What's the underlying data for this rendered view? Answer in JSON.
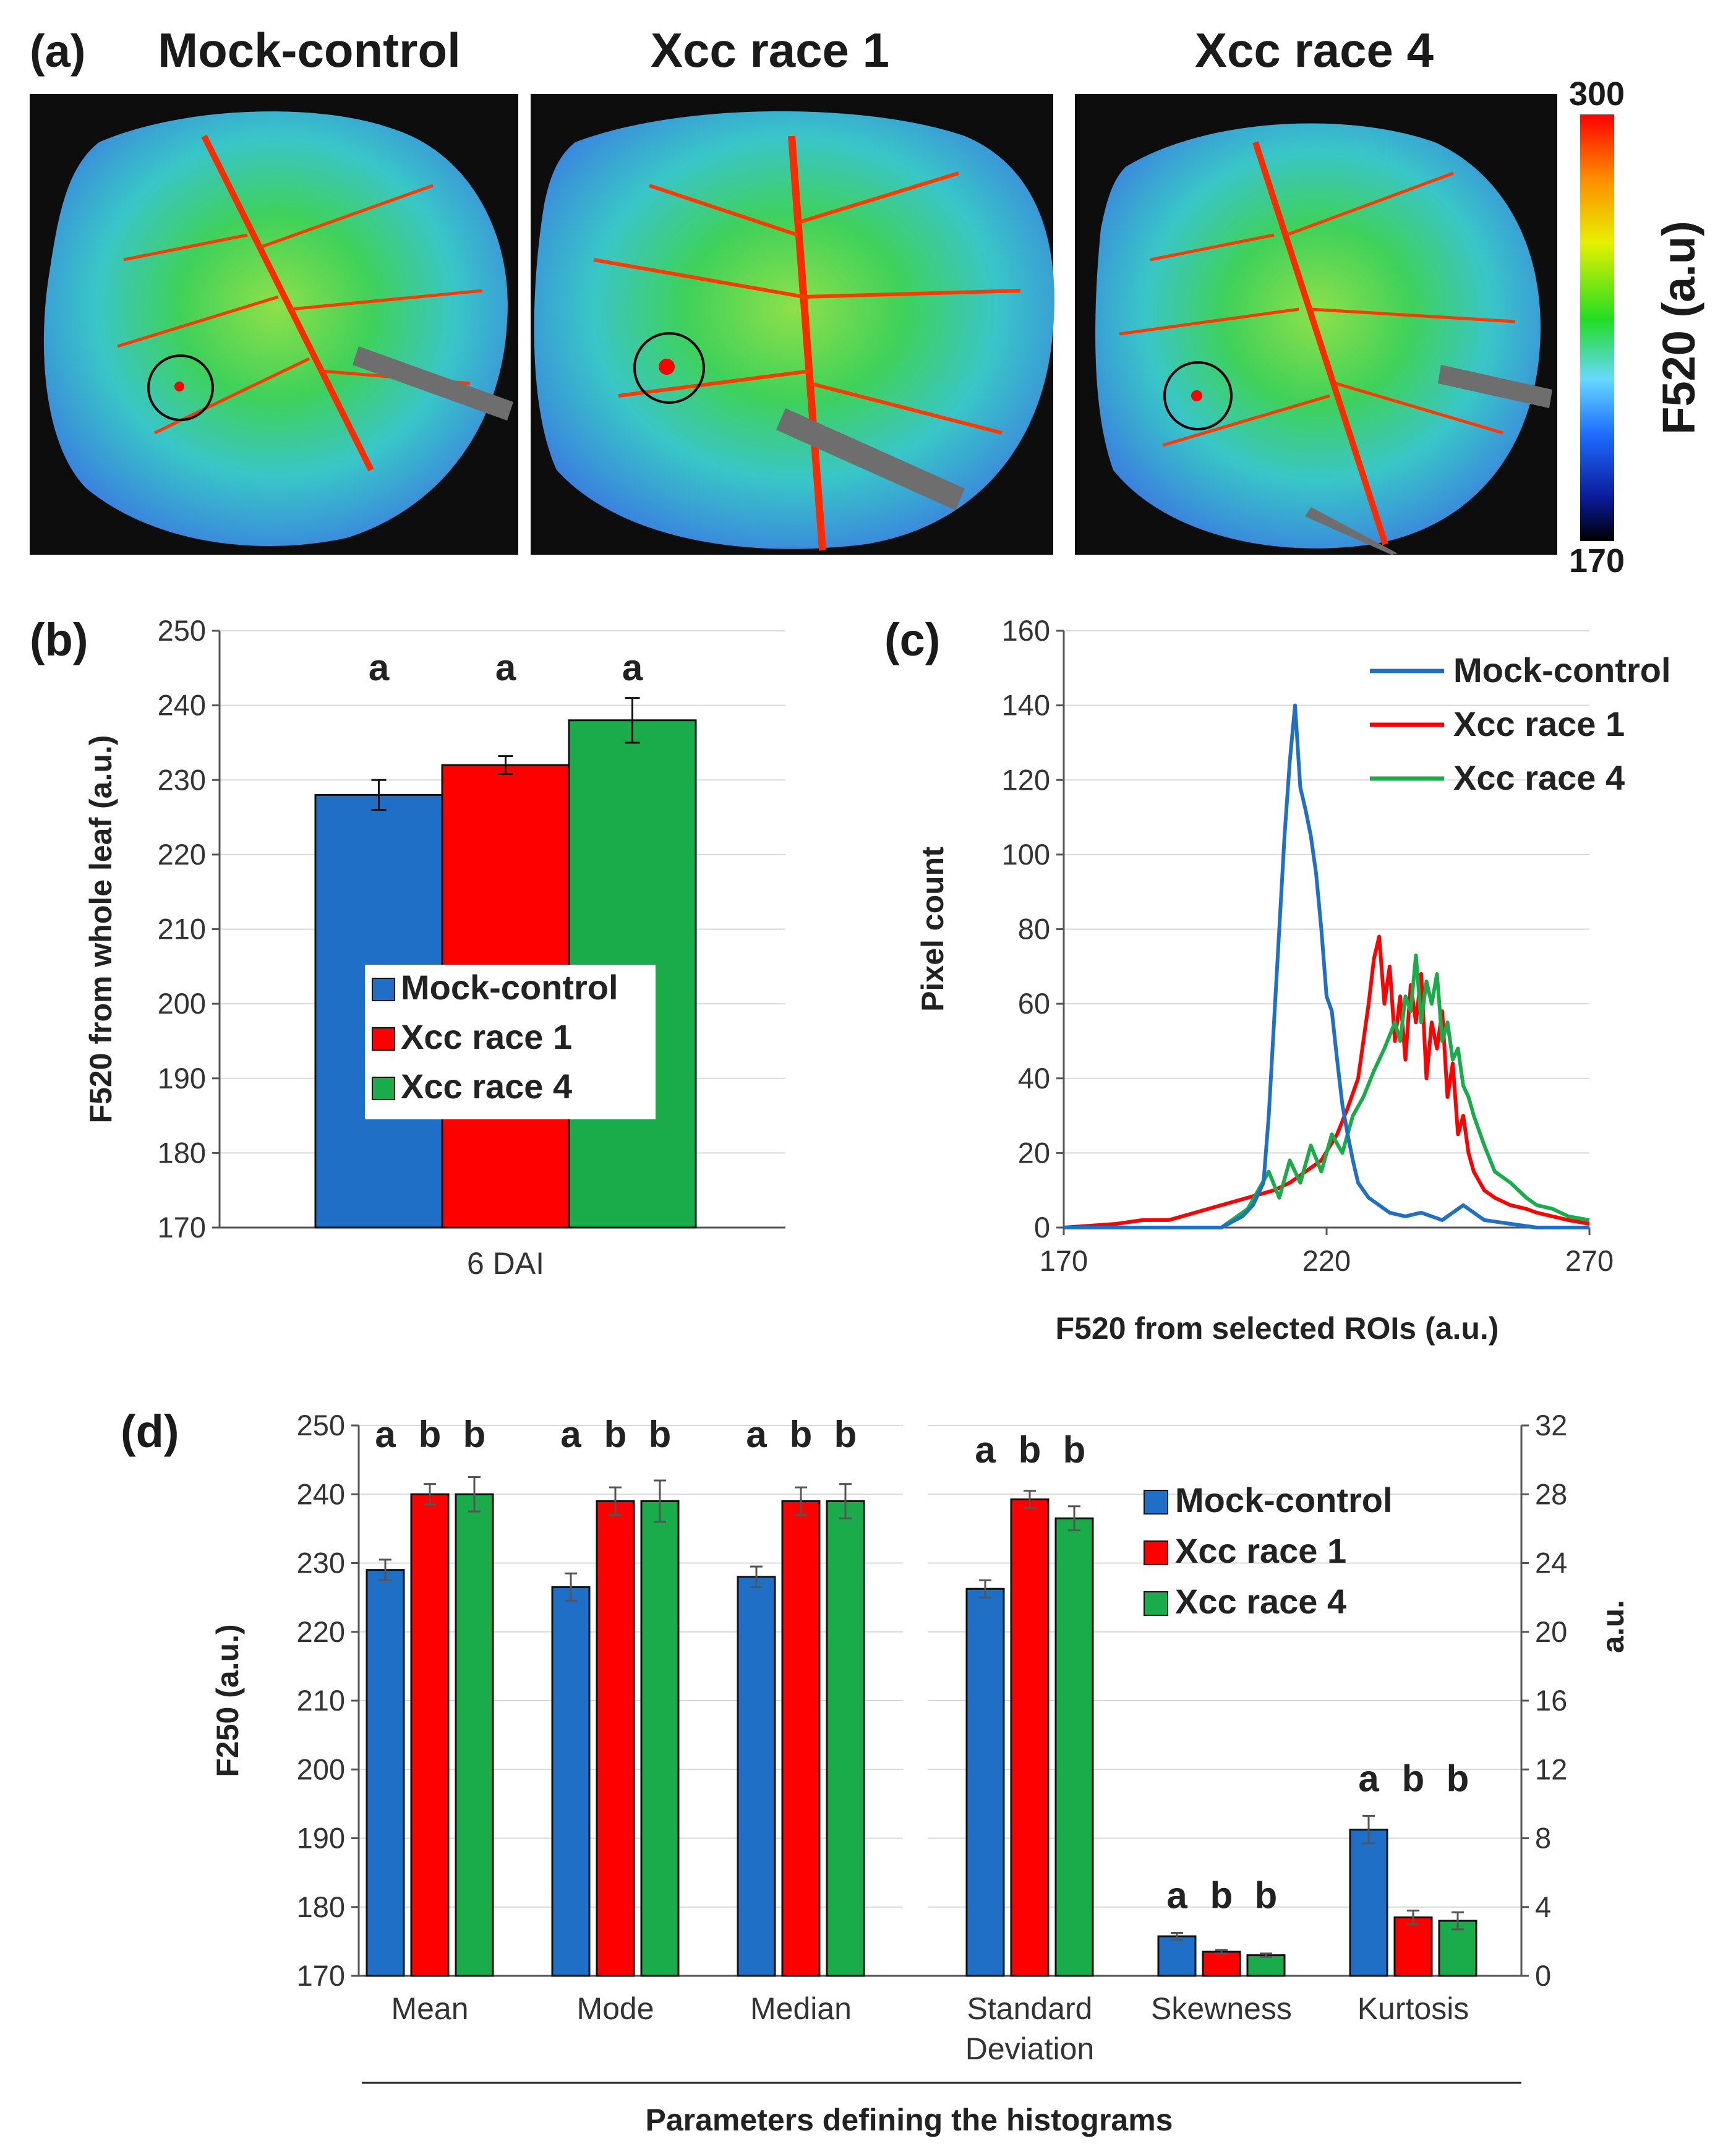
{
  "panel_a": {
    "label": "(a)",
    "images": [
      {
        "title": "Mock-control"
      },
      {
        "title": "Xcc race 1"
      },
      {
        "title": "Xcc race 4"
      }
    ],
    "colorbar": {
      "title": "F520 (a.u)",
      "max_label": "300",
      "min_label": "170"
    }
  },
  "colors": {
    "mock": "#1f6fc6",
    "race1": "#ff0000",
    "race4": "#1aab4a"
  },
  "chart_data": [
    {
      "id": "b",
      "label": "(b)",
      "type": "bar",
      "categories": [
        "6 DAI"
      ],
      "series": [
        {
          "name": "Mock-control",
          "values": [
            228
          ],
          "errors": [
            2
          ],
          "letters": [
            "a"
          ]
        },
        {
          "name": "Xcc race 1",
          "values": [
            232
          ],
          "errors": [
            1.2
          ],
          "letters": [
            "a"
          ]
        },
        {
          "name": "Xcc race 4",
          "values": [
            238
          ],
          "errors": [
            3
          ],
          "letters": [
            "a"
          ]
        }
      ],
      "ylabel": "F520 from whole leaf (a.u.)",
      "ylim": [
        170,
        250
      ],
      "yticks": [
        "170",
        "180",
        "190",
        "200",
        "210",
        "220",
        "230",
        "240",
        "250"
      ],
      "legend_placement": "center"
    },
    {
      "id": "c",
      "label": "(c)",
      "type": "line",
      "xlabel": "F520 from selected ROIs (a.u.)",
      "ylabel": "Pixel count",
      "xlim": [
        170,
        270
      ],
      "ylim": [
        0,
        160
      ],
      "xticks": [
        "170",
        "220",
        "270"
      ],
      "yticks": [
        "0",
        "20",
        "40",
        "60",
        "80",
        "100",
        "120",
        "140",
        "160"
      ],
      "legend_placement": "top-right",
      "series": [
        {
          "name": "Mock-control",
          "x": [
            170,
            200,
            204,
            206,
            208,
            209,
            210,
            211,
            212,
            213,
            214,
            215,
            216,
            217,
            218,
            219,
            220,
            221,
            222,
            223,
            224,
            225,
            226,
            228,
            230,
            232,
            235,
            238,
            242,
            246,
            250,
            255,
            260,
            270
          ],
          "y": [
            0,
            0,
            3,
            6,
            12,
            30,
            55,
            80,
            105,
            125,
            140,
            118,
            112,
            105,
            95,
            80,
            62,
            58,
            45,
            33,
            25,
            18,
            12,
            8,
            6,
            4,
            3,
            4,
            2,
            6,
            2,
            1,
            0,
            0
          ]
        },
        {
          "name": "Xcc race 1",
          "x": [
            170,
            180,
            185,
            190,
            195,
            200,
            205,
            210,
            213,
            216,
            219,
            222,
            224,
            226,
            228,
            229,
            230,
            231,
            232,
            233,
            234,
            235,
            236,
            237,
            238,
            239,
            240,
            241,
            242,
            243,
            244,
            245,
            246,
            247,
            248,
            250,
            252,
            255,
            258,
            260,
            263,
            266,
            270
          ],
          "y": [
            0,
            1,
            2,
            2,
            4,
            6,
            8,
            10,
            12,
            15,
            18,
            25,
            32,
            40,
            60,
            72,
            78,
            60,
            70,
            50,
            62,
            45,
            65,
            55,
            68,
            40,
            55,
            48,
            58,
            35,
            44,
            25,
            30,
            20,
            15,
            10,
            8,
            6,
            5,
            4,
            3,
            2,
            1
          ]
        },
        {
          "name": "Xcc race 4",
          "x": [
            170,
            200,
            205,
            207,
            209,
            211,
            213,
            215,
            217,
            219,
            221,
            223,
            225,
            227,
            229,
            231,
            233,
            234,
            235,
            236,
            237,
            238,
            239,
            240,
            241,
            242,
            243,
            244,
            245,
            246,
            247,
            248,
            250,
            252,
            255,
            258,
            260,
            263,
            266,
            270
          ],
          "y": [
            0,
            0,
            5,
            10,
            15,
            8,
            18,
            12,
            22,
            15,
            25,
            20,
            30,
            35,
            42,
            48,
            55,
            50,
            62,
            58,
            73,
            55,
            66,
            60,
            68,
            50,
            55,
            45,
            48,
            38,
            35,
            30,
            22,
            15,
            12,
            8,
            6,
            5,
            3,
            2
          ]
        }
      ]
    },
    {
      "id": "d",
      "label": "(d)",
      "type": "bar",
      "xlabel": "Parameters defining the histograms",
      "ylabel": "F250 (a.u.)",
      "ylabel_right": "a.u.",
      "ylim": [
        170,
        250
      ],
      "ylim_right": [
        0,
        32
      ],
      "yticks": [
        "170",
        "180",
        "190",
        "200",
        "210",
        "220",
        "230",
        "240",
        "250"
      ],
      "yticks_right": [
        "0",
        "4",
        "8",
        "12",
        "16",
        "20",
        "24",
        "28",
        "32"
      ],
      "legend_placement": "top-right",
      "groups": [
        {
          "category": "Mean",
          "axis": "left",
          "values": [
            229,
            240,
            240
          ],
          "errors": [
            1.5,
            1.5,
            2.5
          ],
          "letters": [
            "a",
            "b",
            "b"
          ]
        },
        {
          "category": "Mode",
          "axis": "left",
          "values": [
            226.5,
            239,
            239
          ],
          "errors": [
            2,
            2,
            3
          ],
          "letters": [
            "a",
            "b",
            "b"
          ]
        },
        {
          "category": "Median",
          "axis": "left",
          "values": [
            228,
            239,
            239
          ],
          "errors": [
            1.5,
            2,
            2.5
          ],
          "letters": [
            "a",
            "b",
            "b"
          ]
        },
        {
          "category": "Standard Deviation",
          "category_lines": [
            "Standard",
            "Deviation"
          ],
          "axis": "right",
          "values": [
            22.5,
            27.7,
            26.6
          ],
          "errors": [
            0.5,
            0.5,
            0.7
          ],
          "letters": [
            "a",
            "b",
            "b"
          ]
        },
        {
          "category": "Skewness",
          "axis": "right",
          "values": [
            2.3,
            1.4,
            1.2
          ],
          "errors": [
            0.2,
            0.1,
            0.1
          ],
          "letters": [
            "a",
            "b",
            "b"
          ]
        },
        {
          "category": "Kurtosis",
          "axis": "right",
          "values": [
            8.5,
            3.4,
            3.2
          ],
          "errors": [
            0.8,
            0.4,
            0.5
          ],
          "letters": [
            "a",
            "b",
            "b"
          ]
        }
      ],
      "series_names": [
        "Mock-control",
        "Xcc race 1",
        "Xcc race 4"
      ]
    }
  ]
}
